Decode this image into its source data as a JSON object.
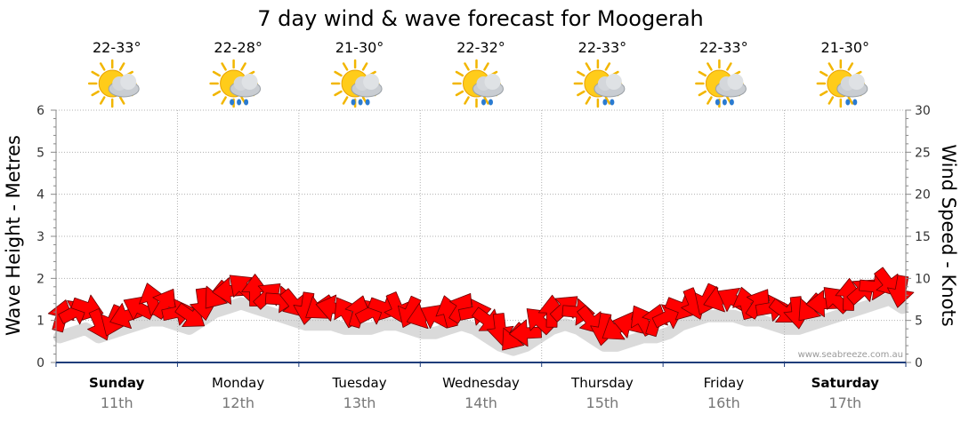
{
  "chart_data": {
    "type": "line",
    "title": "7 day wind & wave forecast for Moogerah",
    "ylabel_left": "Wave Height - Metres",
    "ylabel_right": "Wind Speed - Knots",
    "ylim_left": [
      0,
      6
    ],
    "ylim_right": [
      0,
      30
    ],
    "yticks_left": [
      "0",
      "1",
      "2",
      "3",
      "4",
      "5",
      "6"
    ],
    "yticks_right": [
      "0",
      "5",
      "10",
      "15",
      "20",
      "25",
      "30"
    ],
    "watermark": "www.seabreeze.com.au",
    "days": [
      {
        "name": "Sunday",
        "date": "11th",
        "temp": "22-33°",
        "weather": "partly-cloudy",
        "bold": true
      },
      {
        "name": "Monday",
        "date": "12th",
        "temp": "22-28°",
        "weather": "showers",
        "bold": false
      },
      {
        "name": "Tuesday",
        "date": "13th",
        "temp": "21-30°",
        "weather": "showers",
        "bold": false
      },
      {
        "name": "Wednesday",
        "date": "14th",
        "temp": "22-32°",
        "weather": "light-showers",
        "bold": false
      },
      {
        "name": "Thursday",
        "date": "15th",
        "temp": "22-33°",
        "weather": "light-showers",
        "bold": false
      },
      {
        "name": "Friday",
        "date": "16th",
        "temp": "22-33°",
        "weather": "showers",
        "bold": false
      },
      {
        "name": "Saturday",
        "date": "17th",
        "temp": "21-30°",
        "weather": "light-showers",
        "bold": true
      }
    ],
    "wind_series": {
      "name": "Wind Speed (knots)",
      "color": "#ff0000",
      "values": [
        5.5,
        6,
        6.5,
        4.5,
        5,
        5.5,
        6.5,
        7.5,
        7,
        6,
        5.5,
        7,
        8,
        8.5,
        9,
        8.5,
        8,
        7.5,
        7,
        6.5,
        6.5,
        6.5,
        6,
        6,
        6,
        6.5,
        6.5,
        6,
        5.5,
        5.5,
        6,
        6.5,
        6,
        5,
        4,
        3,
        3.5,
        5,
        6,
        6.5,
        6,
        5,
        4,
        4,
        4.5,
        5,
        5,
        5.5,
        6.5,
        7,
        7.5,
        7.5,
        7.5,
        7,
        7,
        6.5,
        6,
        6,
        6.5,
        7,
        7.5,
        8,
        8.5,
        9,
        9.5,
        8.5
      ]
    },
    "swell_shadow": {
      "name": "Wave Height (m)",
      "color": "#bbbbbb",
      "values": [
        0.9,
        1.0,
        1.1,
        0.9,
        1.0,
        1.1,
        1.2,
        1.3,
        1.3,
        1.2,
        1.1,
        1.3,
        1.5,
        1.6,
        1.7,
        1.6,
        1.5,
        1.4,
        1.3,
        1.2,
        1.2,
        1.2,
        1.1,
        1.1,
        1.1,
        1.2,
        1.2,
        1.1,
        1.0,
        1.0,
        1.1,
        1.2,
        1.1,
        0.9,
        0.7,
        0.6,
        0.7,
        0.9,
        1.1,
        1.2,
        1.1,
        0.9,
        0.7,
        0.7,
        0.8,
        0.9,
        0.9,
        1.0,
        1.2,
        1.3,
        1.4,
        1.4,
        1.4,
        1.3,
        1.3,
        1.2,
        1.1,
        1.1,
        1.2,
        1.3,
        1.4,
        1.5,
        1.6,
        1.7,
        1.8,
        1.6
      ]
    }
  }
}
